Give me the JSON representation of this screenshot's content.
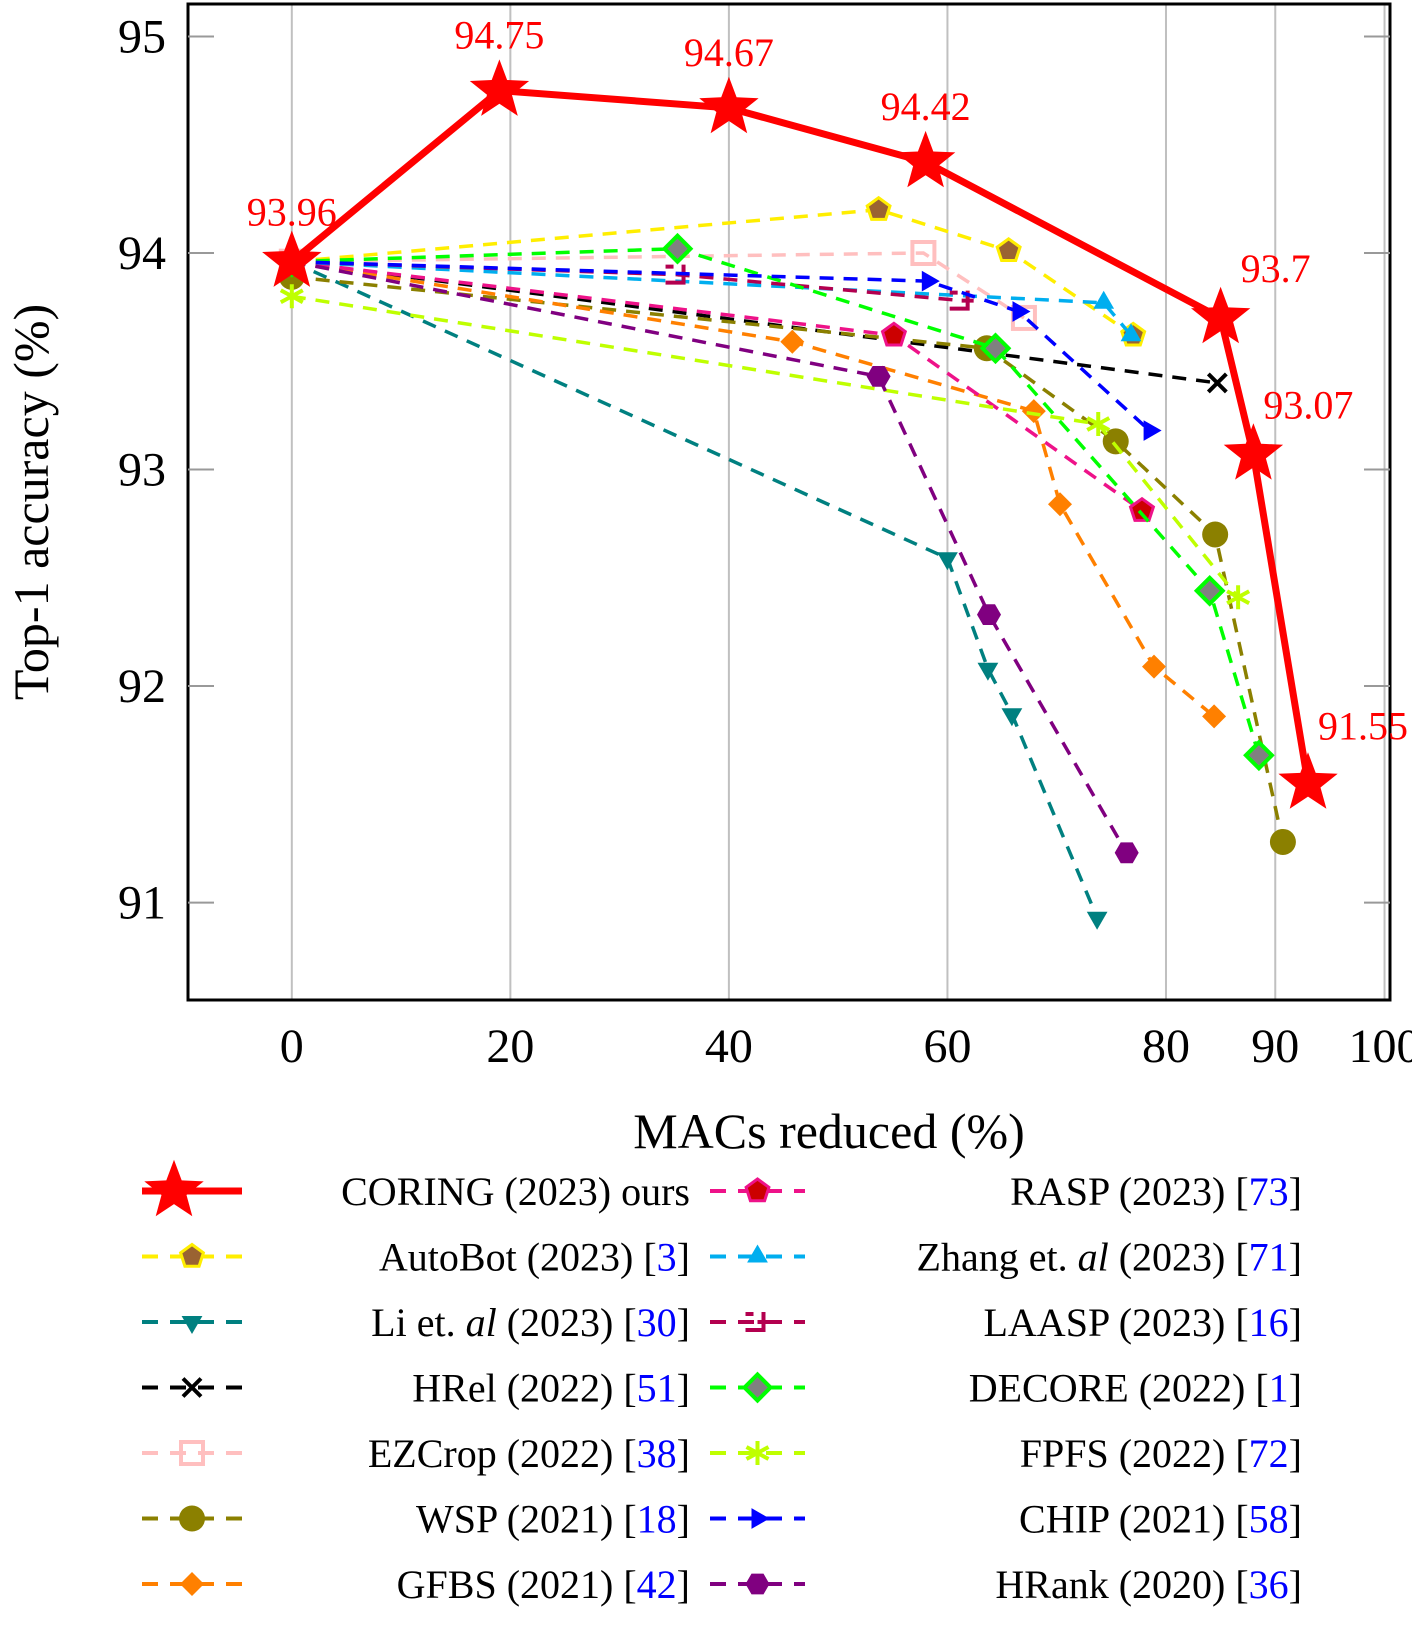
{
  "chart_data": {
    "type": "line",
    "title": "",
    "xlabel": "MACs reduced (%)",
    "ylabel": "Top-1 accuracy (%)",
    "xlim": [
      -9.5,
      100.5
    ],
    "ylim": [
      90.55,
      95.15
    ],
    "xticks": [
      0,
      20,
      40,
      60,
      80,
      90,
      100
    ],
    "yticks": [
      91,
      92,
      93,
      94,
      95
    ],
    "grid": "vertical",
    "legend_position": "bottom",
    "series": [
      {
        "name": "CORING (2023) ours",
        "ref": "",
        "color": "#ff0000",
        "marker": "star",
        "style": "solid",
        "x": [
          0,
          19,
          40,
          58,
          85,
          88,
          93
        ],
        "y": [
          93.96,
          94.75,
          94.67,
          94.42,
          93.7,
          93.07,
          91.55
        ],
        "labels": [
          "93.96",
          "94.75",
          "94.67",
          "94.42",
          "93.7",
          "93.07",
          "91.55"
        ]
      },
      {
        "name": "AutoBot (2023)",
        "ref": "3",
        "color": "#ffee00",
        "markerColor": "#9a6332",
        "marker": "pentagon",
        "style": "dashed",
        "x": [
          0,
          53.7,
          65.6,
          77
        ],
        "y": [
          93.96,
          94.2,
          94.01,
          93.62
        ]
      },
      {
        "name": "Li et. al (2023)",
        "ref": "30",
        "color": "#008080",
        "marker": "triangle-down",
        "style": "dashed",
        "x": [
          0,
          60,
          63.7,
          65.9,
          73.7
        ],
        "y": [
          93.96,
          92.59,
          92.08,
          91.87,
          90.93
        ]
      },
      {
        "name": "HRel (2022)",
        "ref": "51",
        "color": "#000000",
        "marker": "cross",
        "style": "dashed",
        "x": [
          0,
          84.7
        ],
        "y": [
          93.96,
          93.4
        ]
      },
      {
        "name": "EZCrop (2022)",
        "ref": "38",
        "color": "#ffbfbf",
        "marker": "square-open",
        "style": "dashed",
        "x": [
          0,
          57.8,
          67
        ],
        "y": [
          93.96,
          94.0,
          93.7
        ]
      },
      {
        "name": "WSP (2021)",
        "ref": "18",
        "color": "#8b8000",
        "marker": "circle",
        "style": "dashed",
        "x": [
          0,
          63.6,
          75.4,
          84.5,
          90.7
        ],
        "y": [
          93.89,
          93.56,
          93.13,
          92.7,
          91.28
        ]
      },
      {
        "name": "GFBS (2021)",
        "ref": "42",
        "color": "#ff8000",
        "marker": "diamond",
        "style": "dashed",
        "x": [
          0,
          45.8,
          67.9,
          70.3,
          78.9,
          84.4
        ],
        "y": [
          93.96,
          93.59,
          93.27,
          92.84,
          92.09,
          91.86
        ]
      },
      {
        "name": "RASP (2023)",
        "ref": "73",
        "color": "#ee1289",
        "markerColor": "#cc0000",
        "marker": "pentagon",
        "style": "dashed",
        "x": [
          0,
          55.1,
          77.8
        ],
        "y": [
          93.96,
          93.62,
          92.81
        ]
      },
      {
        "name": "Zhang et. al (2023)",
        "ref": "71",
        "color": "#00aeef",
        "marker": "triangle-up",
        "style": "dashed",
        "x": [
          0,
          74.3,
          76.8
        ],
        "y": [
          93.96,
          93.77,
          93.62
        ]
      },
      {
        "name": "LAASP (2023)",
        "ref": "16",
        "color": "#b3004f",
        "marker": "bracket",
        "style": "dashed",
        "x": [
          0,
          35.3,
          61.3
        ],
        "y": [
          93.96,
          93.9,
          93.78
        ]
      },
      {
        "name": "DECORE (2022)",
        "ref": "1",
        "color": "#00ff00",
        "markerColor": "#808080",
        "marker": "diamond-open",
        "style": "dashed",
        "x": [
          0,
          35.3,
          64.4,
          84.0,
          88.5
        ],
        "y": [
          93.96,
          94.02,
          93.56,
          92.44,
          91.68
        ]
      },
      {
        "name": "FPFS (2022)",
        "ref": "72",
        "color": "#bfff00",
        "marker": "asterisk",
        "style": "dashed",
        "x": [
          0,
          73.8,
          86.6
        ],
        "y": [
          93.8,
          93.21,
          92.41
        ]
      },
      {
        "name": "CHIP (2021)",
        "ref": "58",
        "color": "#0000ff",
        "marker": "triangle-right",
        "style": "dashed",
        "x": [
          0,
          58.2,
          66.5,
          78.5
        ],
        "y": [
          93.96,
          93.87,
          93.73,
          93.18
        ]
      },
      {
        "name": "HRank (2020)",
        "ref": "36",
        "color": "#800080",
        "marker": "hexagon",
        "style": "dashed",
        "x": [
          0,
          53.7,
          63.8,
          76.4
        ],
        "y": [
          93.96,
          93.43,
          92.33,
          91.23
        ]
      }
    ]
  },
  "legend": {
    "items": [
      {
        "label": "CORING (2023) ours",
        "pre": "CORING (2023) ours",
        "italic": "",
        "post": "",
        "ref": ""
      },
      {
        "label": "AutoBot (2023)",
        "pre": "AutoBot (2023)",
        "italic": "",
        "post": "",
        "ref": "3"
      },
      {
        "label": "Li et. al (2023)",
        "pre": "Li et. ",
        "italic": "al",
        "post": " (2023)",
        "ref": "30"
      },
      {
        "label": "HRel (2022)",
        "pre": "HRel (2022)",
        "italic": "",
        "post": "",
        "ref": "51"
      },
      {
        "label": "EZCrop (2022)",
        "pre": "EZCrop (2022)",
        "italic": "",
        "post": "",
        "ref": "38"
      },
      {
        "label": "WSP (2021)",
        "pre": "WSP (2021)",
        "italic": "",
        "post": "",
        "ref": "18"
      },
      {
        "label": "GFBS (2021)",
        "pre": "GFBS (2021)",
        "italic": "",
        "post": "",
        "ref": "42"
      },
      {
        "label": "RASP (2023)",
        "pre": "RASP (2023)",
        "italic": "",
        "post": "",
        "ref": "73"
      },
      {
        "label": "Zhang et. al (2023)",
        "pre": "Zhang et. ",
        "italic": "al",
        "post": " (2023)",
        "ref": "71"
      },
      {
        "label": "LAASP (2023)",
        "pre": "LAASP (2023)",
        "italic": "",
        "post": "",
        "ref": "16"
      },
      {
        "label": "DECORE (2022)",
        "pre": "DECORE (2022)",
        "italic": "",
        "post": "",
        "ref": "1"
      },
      {
        "label": "FPFS (2022)",
        "pre": "FPFS (2022)",
        "italic": "",
        "post": "",
        "ref": "72"
      },
      {
        "label": "CHIP (2021)",
        "pre": "CHIP (2021)",
        "italic": "",
        "post": "",
        "ref": "58"
      },
      {
        "label": "HRank (2020)",
        "pre": "HRank (2020)",
        "italic": "",
        "post": "",
        "ref": "36"
      }
    ]
  }
}
